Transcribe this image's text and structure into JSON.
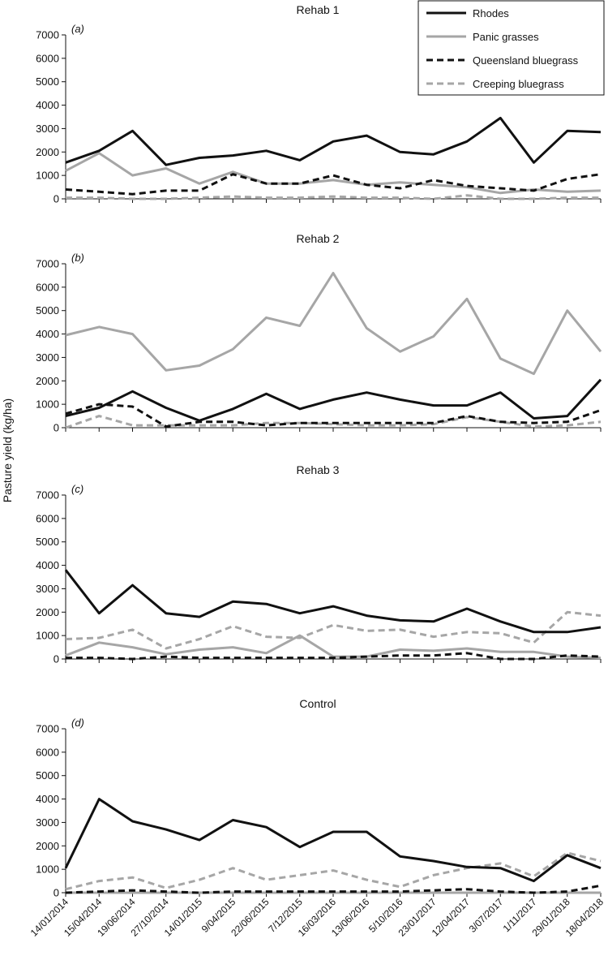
{
  "chart_data": {
    "type": "line",
    "ylabel": "Pasture yield (kg/ha)",
    "ylim": [
      0,
      7000
    ],
    "yticks": [
      0,
      1000,
      2000,
      3000,
      4000,
      5000,
      6000,
      7000
    ],
    "categories": [
      "14/01/2014",
      "15/04/2014",
      "19/06/2014",
      "27/10/2014",
      "14/01/2015",
      "9/04/2015",
      "22/06/2015",
      "7/12/2015",
      "16/03/2016",
      "13/06/2016",
      "5/10/2016",
      "23/01/2017",
      "12/04/2017",
      "3/07/2017",
      "1/11/2017",
      "29/01/2018",
      "18/04/2018"
    ],
    "legend": {
      "position": "top-right",
      "entries": [
        {
          "name": "Rhodes",
          "color": "#111111",
          "dash": "solid"
        },
        {
          "name": "Panic grasses",
          "color": "#a6a6a6",
          "dash": "solid"
        },
        {
          "name": "Queensland bluegrass",
          "color": "#111111",
          "dash": "dashed"
        },
        {
          "name": "Creeping bluegrass",
          "color": "#a6a6a6",
          "dash": "dashed"
        }
      ]
    },
    "panels": [
      {
        "label": "(a)",
        "title": "Rehab 1",
        "series": [
          {
            "name": "Rhodes",
            "values": [
              1550,
              2050,
              2900,
              1450,
              1750,
              1850,
              2050,
              1650,
              2450,
              2700,
              2000,
              1900,
              2450,
              3450,
              1550,
              2900,
              2850
            ]
          },
          {
            "name": "Panic grasses",
            "values": [
              1200,
              1950,
              1000,
              1300,
              650,
              1150,
              650,
              650,
              800,
              600,
              700,
              600,
              500,
              250,
              400,
              300,
              350
            ]
          },
          {
            "name": "Queensland bluegrass",
            "values": [
              400,
              300,
              200,
              350,
              350,
              1050,
              650,
              650,
              1000,
              600,
              450,
              800,
              550,
              450,
              350,
              850,
              1050
            ]
          },
          {
            "name": "Creeping bluegrass",
            "values": [
              50,
              50,
              0,
              0,
              50,
              100,
              50,
              50,
              100,
              50,
              50,
              0,
              150,
              0,
              0,
              50,
              50
            ]
          }
        ]
      },
      {
        "label": "(b)",
        "title": "Rehab 2",
        "series": [
          {
            "name": "Rhodes",
            "values": [
              500,
              850,
              1550,
              850,
              300,
              800,
              1450,
              800,
              1200,
              1500,
              1200,
              950,
              950,
              1500,
              400,
              500,
              2050
            ]
          },
          {
            "name": "Panic grasses",
            "values": [
              3950,
              4300,
              4000,
              2450,
              2650,
              3350,
              4700,
              4350,
              6600,
              4250,
              3250,
              3900,
              5500,
              2950,
              2300,
              5000,
              3250
            ]
          },
          {
            "name": "Queensland bluegrass",
            "values": [
              600,
              1000,
              900,
              50,
              250,
              250,
              100,
              200,
              200,
              200,
              200,
              200,
              500,
              250,
              200,
              250,
              750
            ]
          },
          {
            "name": "Creeping bluegrass",
            "values": [
              0,
              500,
              100,
              100,
              100,
              100,
              200,
              200,
              150,
              100,
              100,
              150,
              450,
              250,
              50,
              100,
              250
            ]
          }
        ]
      },
      {
        "label": "(c)",
        "title": "Rehab 3",
        "series": [
          {
            "name": "Rhodes",
            "values": [
              3800,
              1950,
              3150,
              1950,
              1800,
              2450,
              2350,
              1950,
              2250,
              1850,
              1650,
              1600,
              2150,
              1600,
              1150,
              1150,
              1350
            ]
          },
          {
            "name": "Panic grasses",
            "values": [
              150,
              700,
              500,
              200,
              400,
              500,
              250,
              1000,
              100,
              100,
              400,
              350,
              450,
              300,
              300,
              100,
              50
            ]
          },
          {
            "name": "Queensland bluegrass",
            "values": [
              50,
              50,
              0,
              100,
              50,
              50,
              50,
              50,
              50,
              100,
              150,
              150,
              250,
              0,
              0,
              150,
              100
            ]
          },
          {
            "name": "Creeping bluegrass",
            "values": [
              850,
              900,
              1250,
              450,
              850,
              1400,
              950,
              900,
              1450,
              1200,
              1250,
              950,
              1150,
              1100,
              700,
              2000,
              1850
            ]
          }
        ]
      },
      {
        "label": "(d)",
        "title": "Control",
        "series": [
          {
            "name": "Rhodes",
            "values": [
              1050,
              4000,
              3050,
              2700,
              2250,
              3100,
              2800,
              1950,
              2600,
              2600,
              1550,
              1350,
              1100,
              1050,
              500,
              1600,
              1050
            ]
          },
          {
            "name": "Panic grasses",
            "values": [
              0,
              0,
              0,
              0,
              0,
              0,
              0,
              0,
              0,
              0,
              0,
              0,
              0,
              0,
              0,
              0,
              0
            ]
          },
          {
            "name": "Queensland bluegrass",
            "values": [
              0,
              50,
              100,
              50,
              0,
              50,
              50,
              50,
              50,
              50,
              50,
              100,
              150,
              50,
              0,
              50,
              300
            ]
          },
          {
            "name": "Creeping bluegrass",
            "values": [
              150,
              500,
              650,
              200,
              550,
              1050,
              550,
              750,
              950,
              550,
              250,
              750,
              1050,
              1250,
              700,
              1700,
              1350
            ]
          }
        ]
      }
    ]
  }
}
